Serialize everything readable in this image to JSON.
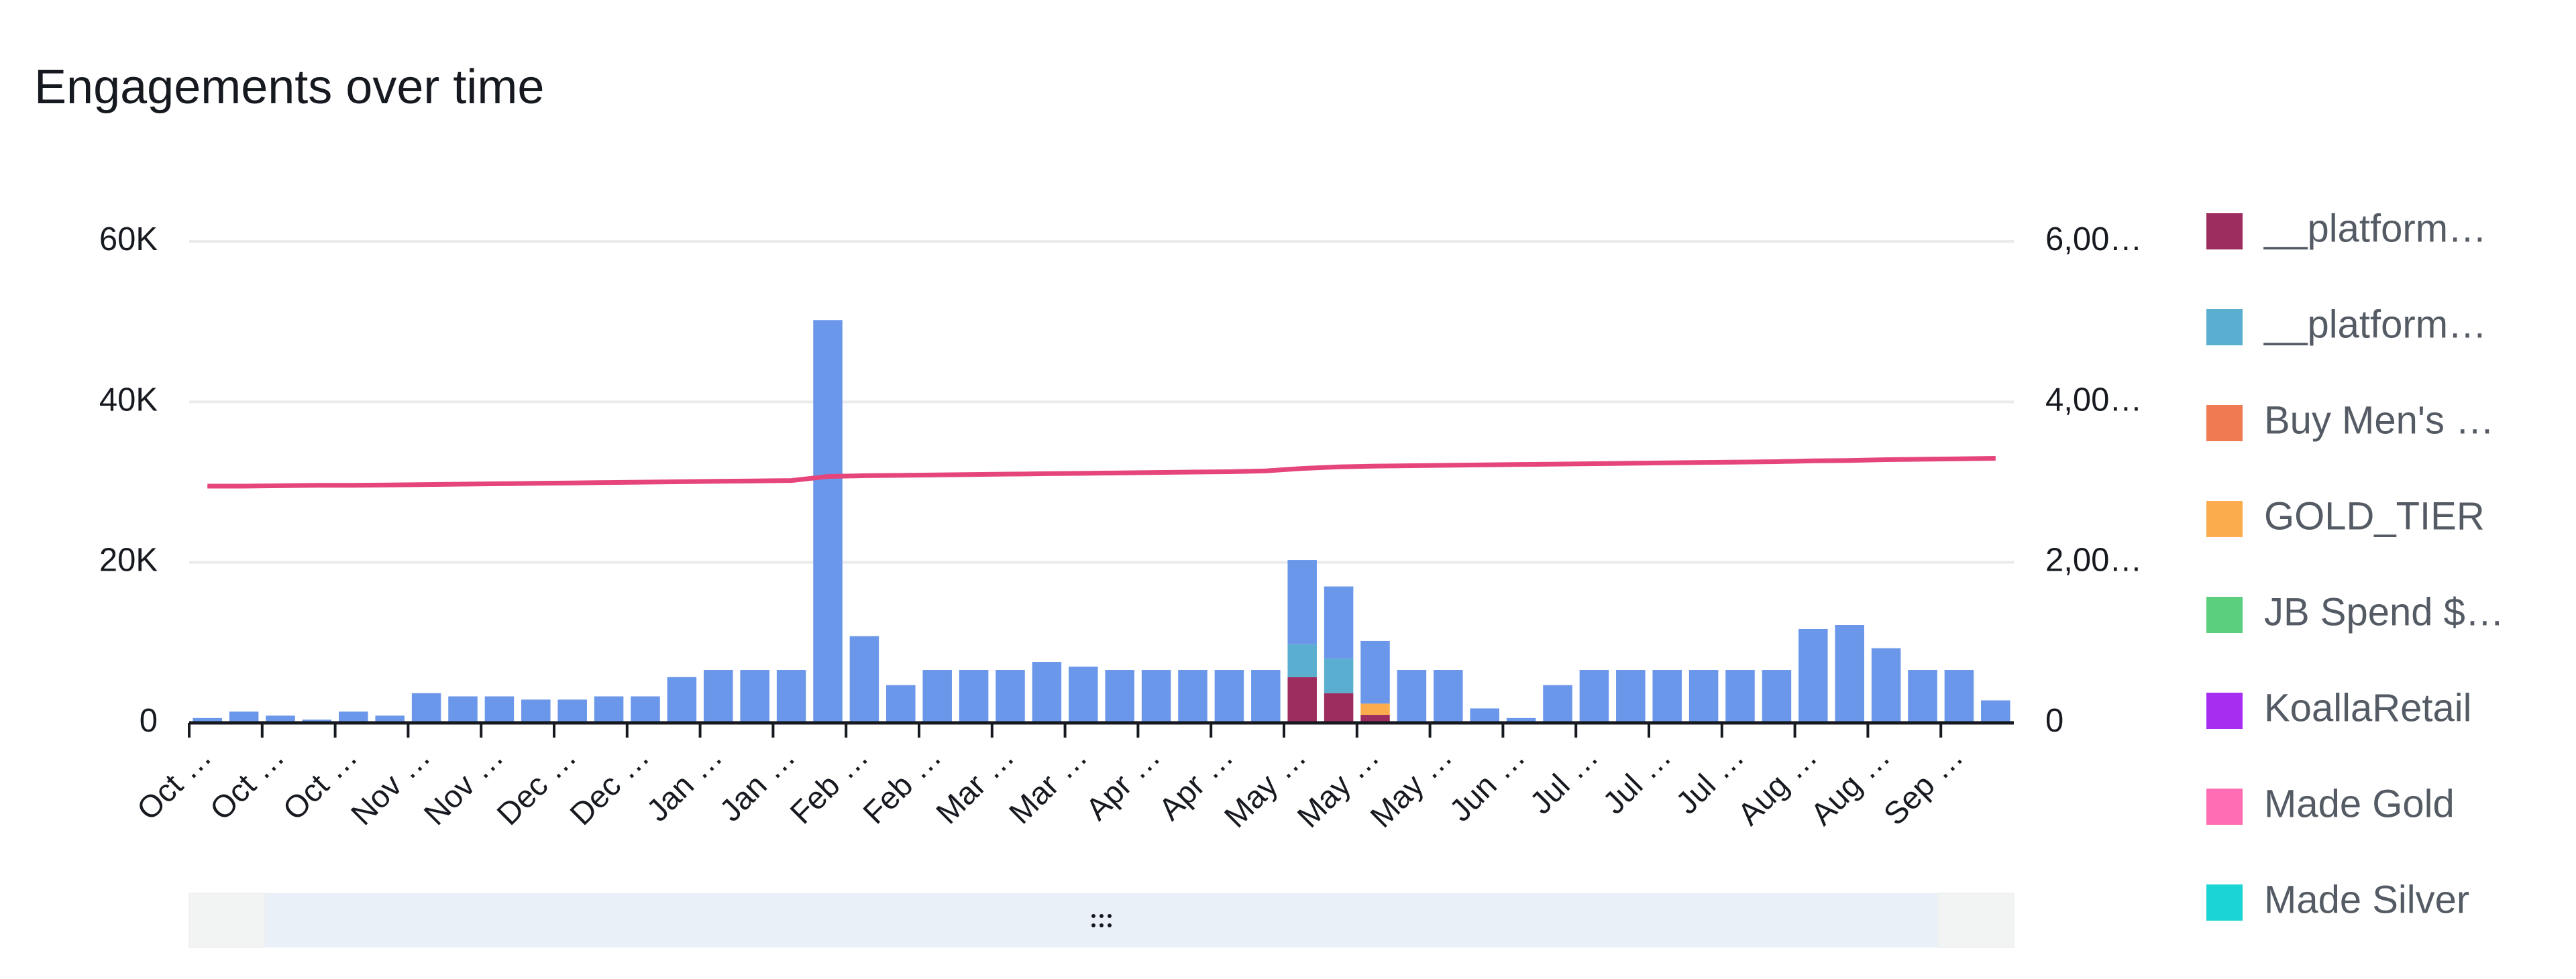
{
  "chart_data": {
    "type": "bar",
    "stacked": true,
    "title": "Engagements over time",
    "categories": [
      "Oct …",
      null,
      "Oct …",
      null,
      "Oct …",
      null,
      "Nov …",
      null,
      "Nov …",
      null,
      "Dec …",
      null,
      "Dec …",
      null,
      "Jan …",
      null,
      "Jan …",
      null,
      "Feb …",
      null,
      "Feb …",
      null,
      "Mar …",
      null,
      "Mar …",
      null,
      "Apr …",
      null,
      "Apr …",
      null,
      "May …",
      null,
      "May …",
      null,
      "May …",
      null,
      "Jun …",
      null,
      "Jul …",
      null,
      "Jul …",
      null,
      "Jul …",
      null,
      "Aug …",
      null,
      "Aug …",
      null,
      "Sep …",
      null
    ],
    "series": [
      {
        "name": "__platform…",
        "color": "#9c2d5e",
        "values": [
          0,
          0,
          0,
          0,
          0,
          0,
          0,
          0,
          0,
          0,
          0,
          0,
          0,
          0,
          0,
          0,
          0,
          0,
          0,
          0,
          0,
          0,
          0,
          0,
          0,
          0,
          0,
          0,
          0,
          0,
          5700,
          3700,
          1000,
          0,
          0,
          0,
          0,
          0,
          0,
          0,
          0,
          0,
          0,
          0,
          0,
          0,
          0,
          0,
          0,
          0
        ]
      },
      {
        "name": "__platform…",
        "color": "#5aaecf",
        "values": [
          0,
          0,
          0,
          0,
          0,
          0,
          0,
          0,
          0,
          0,
          0,
          0,
          0,
          0,
          0,
          0,
          0,
          0,
          0,
          0,
          0,
          0,
          0,
          0,
          0,
          0,
          0,
          0,
          0,
          0,
          4100,
          4300,
          0,
          0,
          0,
          0,
          0,
          0,
          0,
          0,
          0,
          0,
          0,
          0,
          0,
          0,
          0,
          0,
          0,
          0
        ]
      },
      {
        "name": "Buy Men's …",
        "color": "#f07a52",
        "values": [
          0,
          0,
          0,
          0,
          0,
          0,
          0,
          0,
          0,
          0,
          0,
          0,
          0,
          0,
          0,
          0,
          0,
          0,
          0,
          0,
          0,
          0,
          0,
          0,
          0,
          0,
          0,
          0,
          0,
          0,
          0,
          0,
          0,
          0,
          0,
          0,
          0,
          0,
          0,
          0,
          0,
          0,
          0,
          0,
          0,
          0,
          0,
          0,
          0,
          0
        ]
      },
      {
        "name": "GOLD_TIER",
        "color": "#fbad4e",
        "values": [
          0,
          0,
          0,
          0,
          0,
          0,
          0,
          0,
          0,
          0,
          0,
          0,
          0,
          0,
          0,
          0,
          0,
          0,
          0,
          0,
          0,
          0,
          0,
          0,
          0,
          0,
          0,
          0,
          0,
          0,
          0,
          0,
          1400,
          0,
          0,
          0,
          0,
          0,
          0,
          0,
          0,
          0,
          0,
          0,
          0,
          0,
          0,
          0,
          0,
          0
        ]
      },
      {
        "name": "JB Spend $…",
        "color": "#5ccf7e",
        "values": [
          0,
          0,
          0,
          0,
          0,
          0,
          0,
          0,
          0,
          0,
          0,
          0,
          0,
          0,
          0,
          0,
          0,
          0,
          0,
          0,
          0,
          0,
          0,
          0,
          0,
          0,
          0,
          0,
          0,
          0,
          0,
          0,
          0,
          0,
          0,
          0,
          0,
          0,
          0,
          0,
          0,
          0,
          0,
          0,
          0,
          0,
          0,
          0,
          0,
          0
        ]
      },
      {
        "name": "KoallaRetail",
        "color": "#a72ef0",
        "values": [
          0,
          0,
          0,
          0,
          0,
          0,
          0,
          0,
          0,
          0,
          0,
          0,
          0,
          0,
          0,
          0,
          0,
          0,
          0,
          0,
          0,
          0,
          0,
          0,
          0,
          0,
          0,
          0,
          0,
          0,
          0,
          0,
          0,
          0,
          0,
          0,
          0,
          0,
          0,
          0,
          0,
          0,
          0,
          0,
          0,
          0,
          0,
          0,
          0,
          0
        ]
      },
      {
        "name": "Made Gold",
        "color": "#ff6eb4",
        "values": [
          0,
          0,
          0,
          0,
          0,
          0,
          0,
          0,
          0,
          0,
          0,
          0,
          0,
          0,
          0,
          0,
          0,
          0,
          0,
          0,
          0,
          0,
          0,
          0,
          0,
          0,
          0,
          0,
          0,
          0,
          0,
          0,
          0,
          0,
          0,
          0,
          0,
          0,
          0,
          0,
          0,
          0,
          0,
          0,
          0,
          0,
          0,
          0,
          0,
          0
        ]
      },
      {
        "name": "Made Silver",
        "color": "#1bd4d4",
        "values": [
          0,
          0,
          0,
          0,
          0,
          0,
          0,
          0,
          0,
          0,
          0,
          0,
          0,
          0,
          0,
          0,
          0,
          0,
          0,
          0,
          0,
          0,
          0,
          0,
          0,
          0,
          0,
          0,
          0,
          0,
          0,
          0,
          0,
          0,
          0,
          0,
          0,
          0,
          0,
          0,
          0,
          0,
          0,
          0,
          0,
          0,
          0,
          0,
          0,
          0
        ]
      },
      {
        "color": "#6b97ea",
        "values": [
          600,
          1400,
          900,
          400,
          1400,
          900,
          3700,
          3300,
          3300,
          2900,
          2900,
          3300,
          3300,
          5700,
          6600,
          6600,
          6600,
          50200,
          10800,
          4700,
          6600,
          6600,
          6600,
          7600,
          7000,
          6600,
          6600,
          6600,
          6600,
          6600,
          10500,
          9000,
          7800,
          6600,
          6600,
          1800,
          600,
          4700,
          6600,
          6600,
          6600,
          6600,
          6600,
          6600,
          11700,
          12200,
          9300,
          6600,
          6600,
          2800
        ]
      },
      {
        "type": "line",
        "axis": "y2",
        "color": "#e5457b",
        "values": [
          2950,
          2950,
          2955,
          2960,
          2960,
          2965,
          2970,
          2975,
          2980,
          2985,
          2990,
          2995,
          3000,
          3005,
          3010,
          3015,
          3020,
          3070,
          3080,
          3085,
          3090,
          3095,
          3100,
          3105,
          3110,
          3115,
          3120,
          3125,
          3130,
          3140,
          3170,
          3190,
          3200,
          3205,
          3210,
          3215,
          3220,
          3225,
          3230,
          3235,
          3240,
          3245,
          3250,
          3255,
          3265,
          3270,
          3280,
          3285,
          3290,
          3297
        ]
      }
    ],
    "ylim": [
      0,
      60000
    ],
    "yticks": [
      0,
      {
        "value": 20000,
        "label": "20K"
      },
      {
        "value": 40000,
        "label": "40K"
      },
      {
        "value": 60000,
        "label": "60K"
      }
    ],
    "y2lim": [
      0,
      6000
    ],
    "y2ticks": [
      0,
      {
        "value": 2000,
        "label": "2,00…"
      },
      {
        "value": 4000,
        "label": "4,00…"
      },
      {
        "value": 6000,
        "label": "6,00…"
      }
    ],
    "grid": true
  }
}
